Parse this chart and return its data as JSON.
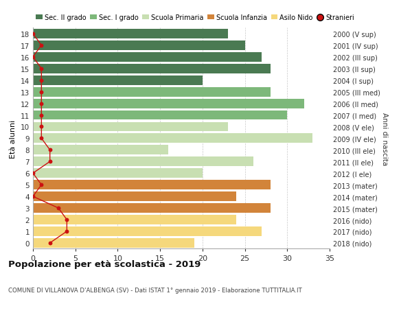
{
  "ages": [
    18,
    17,
    16,
    15,
    14,
    13,
    12,
    11,
    10,
    9,
    8,
    7,
    6,
    5,
    4,
    3,
    2,
    1,
    0
  ],
  "bar_values": [
    23,
    25,
    27,
    28,
    20,
    28,
    32,
    30,
    23,
    33,
    16,
    26,
    20,
    28,
    24,
    28,
    24,
    27,
    19
  ],
  "right_labels": [
    "2000 (V sup)",
    "2001 (IV sup)",
    "2002 (III sup)",
    "2003 (II sup)",
    "2004 (I sup)",
    "2005 (III med)",
    "2006 (II med)",
    "2007 (I med)",
    "2008 (V ele)",
    "2009 (IV ele)",
    "2010 (III ele)",
    "2011 (II ele)",
    "2012 (I ele)",
    "2013 (mater)",
    "2014 (mater)",
    "2015 (mater)",
    "2016 (nido)",
    "2017 (nido)",
    "2018 (nido)"
  ],
  "bar_colors": [
    "#4a7a52",
    "#4a7a52",
    "#4a7a52",
    "#4a7a52",
    "#4a7a52",
    "#7db87a",
    "#7db87a",
    "#7db87a",
    "#c8dfb2",
    "#c8dfb2",
    "#c8dfb2",
    "#c8dfb2",
    "#c8dfb2",
    "#d2843a",
    "#d2843a",
    "#d2843a",
    "#f5d87c",
    "#f5d87c",
    "#f5d87c"
  ],
  "stranieri_values": [
    0,
    1,
    0,
    1,
    1,
    1,
    1,
    1,
    1,
    1,
    2,
    2,
    0,
    1,
    0,
    3,
    4,
    4,
    2
  ],
  "legend_labels": [
    "Sec. II grado",
    "Sec. I grado",
    "Scuola Primaria",
    "Scuola Infanzia",
    "Asilo Nido",
    "Stranieri"
  ],
  "legend_colors": [
    "#4a7a52",
    "#7db87a",
    "#c8dfb2",
    "#d2843a",
    "#f5d87c",
    "#cc1111"
  ],
  "ylabel": "Età alunni",
  "right_ylabel": "Anni di nascita",
  "title": "Popolazione per età scolastica - 2019",
  "subtitle": "COMUNE DI VILLANOVA D'ALBENGA (SV) - Dati ISTAT 1° gennaio 2019 - Elaborazione TUTTITALIA.IT",
  "xlim": [
    0,
    35
  ],
  "xticks": [
    0,
    5,
    10,
    15,
    20,
    25,
    30,
    35
  ],
  "bar_height": 0.82,
  "stranieri_color": "#cc1111",
  "line_color": "#cc1111",
  "bg_color": "#ffffff"
}
